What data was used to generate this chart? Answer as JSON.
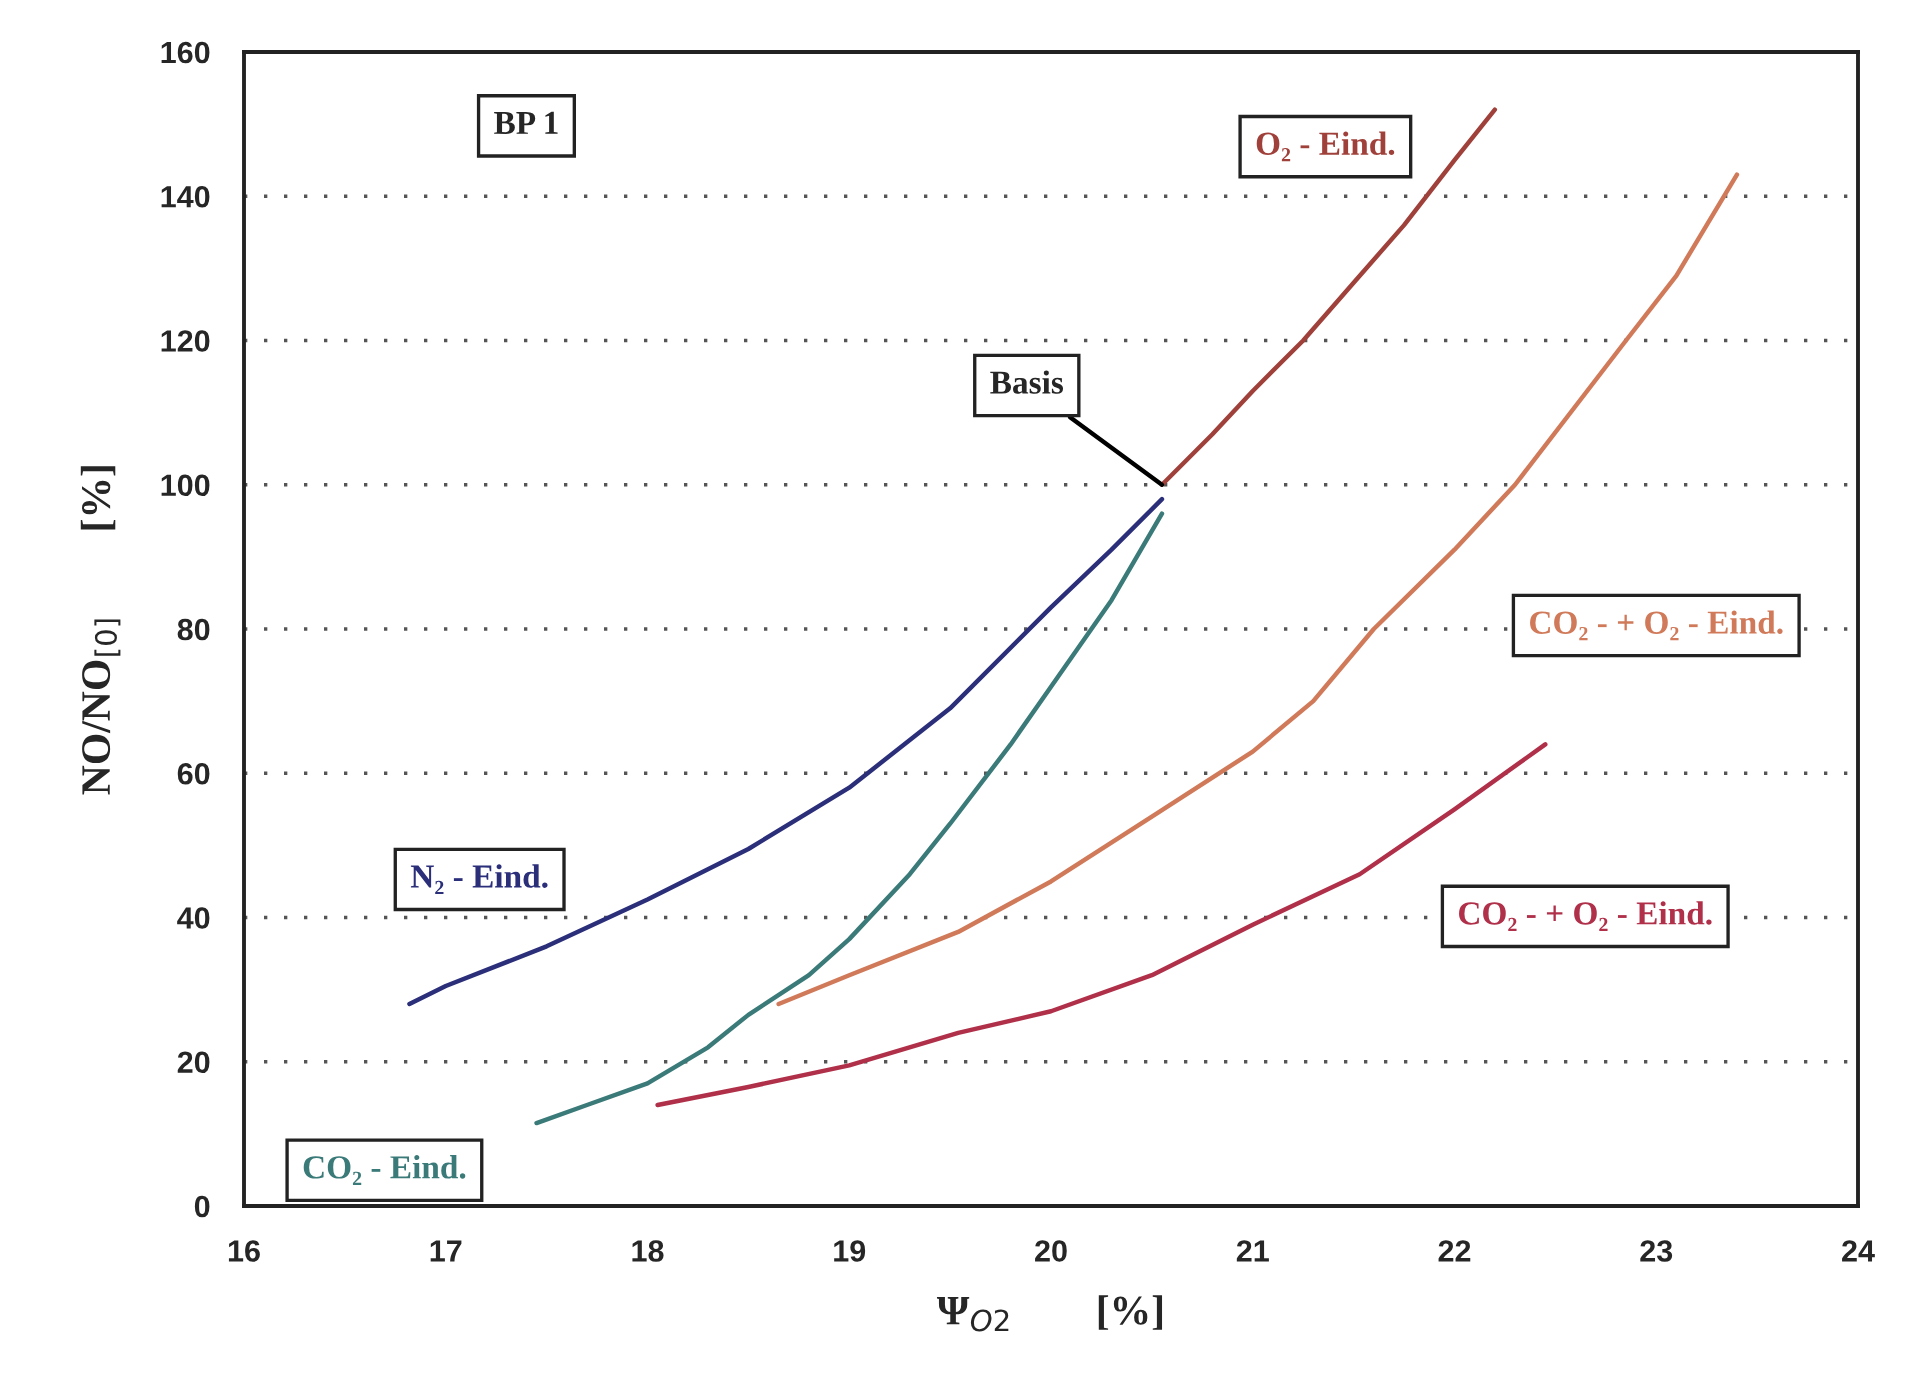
{
  "chart_data": {
    "type": "line",
    "xlabel": "Ψ$_{O2}$        [%]",
    "ylabel": "NO/NO$_{[0]}$        [%]",
    "xlim": [
      16,
      24
    ],
    "xticks": [
      16,
      17,
      18,
      19,
      20,
      21,
      22,
      23,
      24
    ],
    "ylim": [
      0,
      160
    ],
    "yticks": [
      0,
      20,
      40,
      60,
      80,
      100,
      120,
      140,
      160
    ],
    "grid": "y",
    "line_style": "solid",
    "marker": "none",
    "annotations": [
      "BP 1",
      {
        "text": "Basis",
        "x": 20.55,
        "y": 100
      }
    ],
    "series": [
      {
        "name": "N₂ - Eind.",
        "color": "#2b2f7a",
        "x": [
          16.82,
          17.0,
          17.5,
          18.0,
          18.5,
          19.0,
          19.5,
          20.0,
          20.3,
          20.55
        ],
        "values": [
          28,
          30.5,
          36,
          42.5,
          49.5,
          58,
          69,
          83,
          91,
          98
        ]
      },
      {
        "name": "CO₂ - Eind.",
        "color": "#3a7a78",
        "x": [
          17.45,
          17.7,
          18.0,
          18.3,
          18.5,
          18.8,
          19.0,
          19.3,
          19.5,
          19.8,
          20.0,
          20.3,
          20.55
        ],
        "values": [
          11.5,
          14,
          17,
          22,
          26.5,
          32,
          37,
          46,
          53,
          64,
          72,
          84,
          96
        ]
      },
      {
        "name": "O₂ - Eind.",
        "color": "#a0403a",
        "x": [
          20.55,
          20.8,
          21.0,
          21.25,
          21.5,
          21.75,
          22.0,
          22.2
        ],
        "values": [
          100,
          107,
          113,
          120,
          128,
          136,
          145,
          152
        ]
      },
      {
        "name": "CO₂ - + O₂ - Eind.",
        "color": "#d07a5a",
        "x": [
          18.65,
          19.0,
          19.54,
          20.0,
          20.5,
          21.0,
          21.3,
          21.6,
          22.0,
          22.3,
          22.85,
          23.1,
          23.4
        ],
        "values": [
          28,
          32,
          38,
          45,
          54,
          63,
          70,
          80,
          91,
          100,
          120,
          129,
          143
        ]
      },
      {
        "name": "CO₂ - + O₂ - Eind.",
        "color": "#b0304a",
        "x": [
          18.05,
          18.5,
          19.0,
          19.54,
          20.0,
          20.5,
          21.0,
          21.53,
          22.0,
          22.45
        ],
        "values": [
          14,
          16.5,
          19.5,
          24,
          27,
          32,
          39,
          46,
          55,
          64
        ]
      }
    ]
  }
}
